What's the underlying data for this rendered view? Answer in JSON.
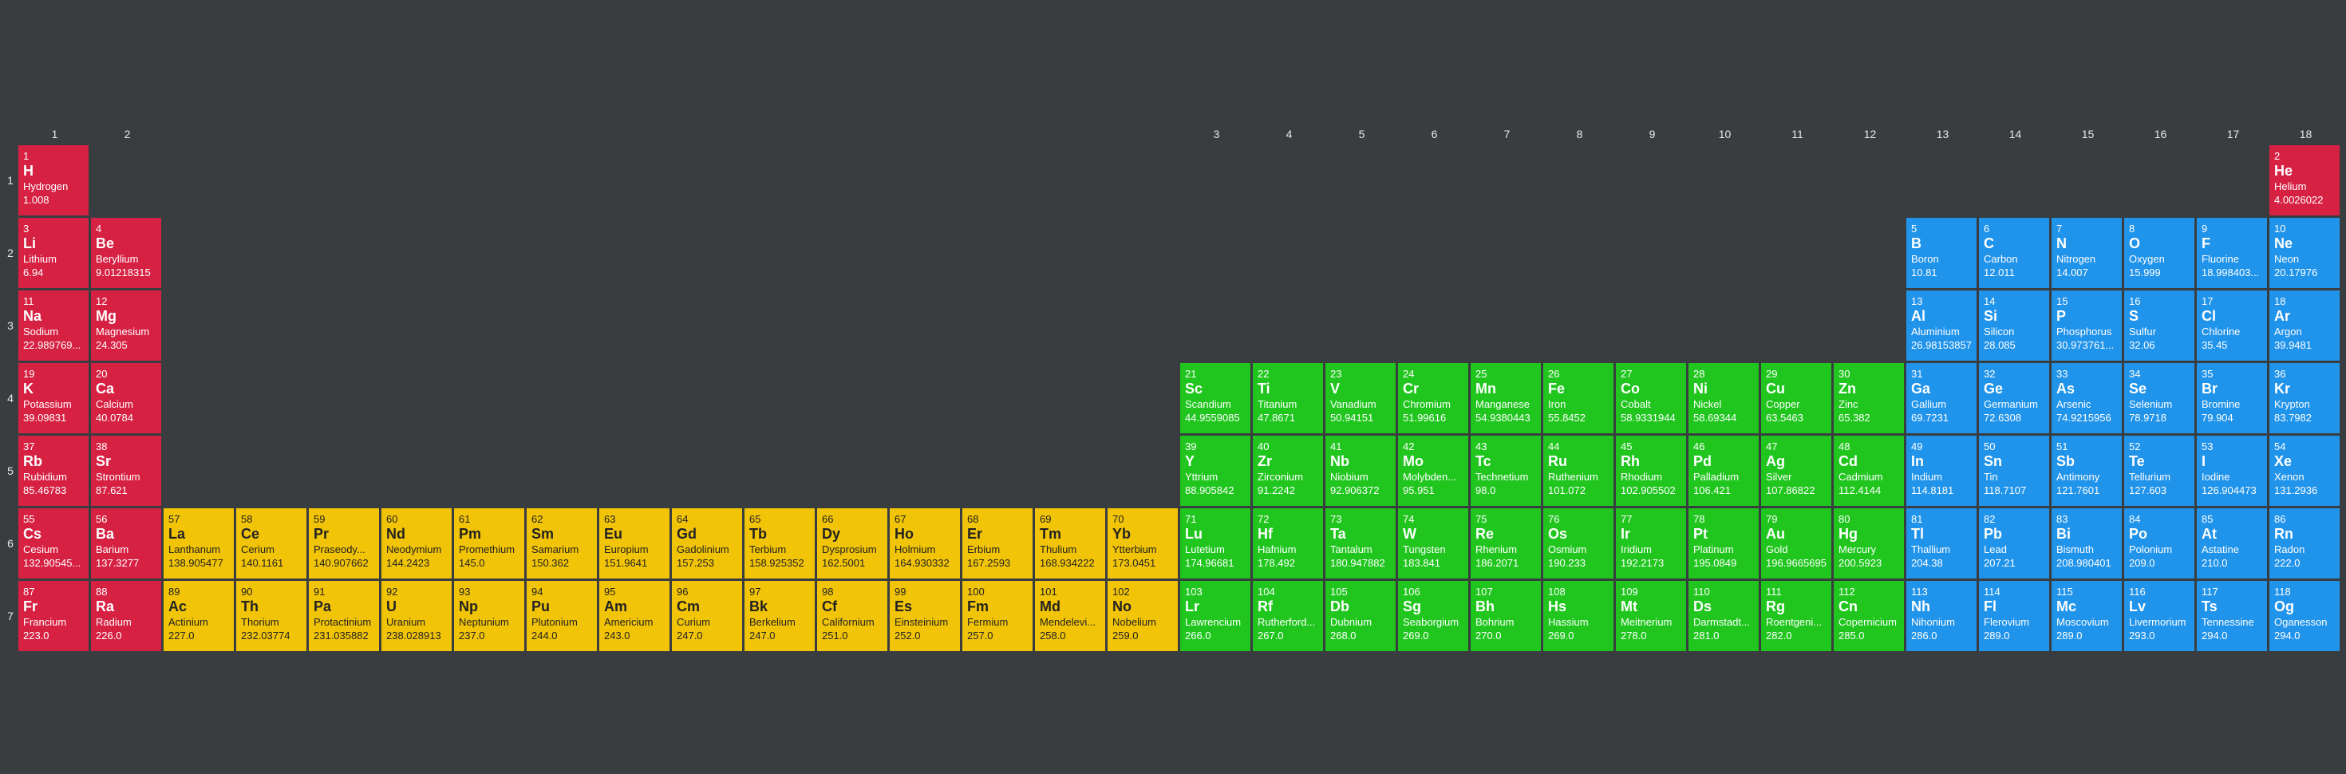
{
  "colors": {
    "red": "#d62143",
    "blue": "#2093ea",
    "green": "#20c61e",
    "yellow": "#f2c407",
    "background": "#3a3d40"
  },
  "col_labels": [
    "1",
    "2",
    "3",
    "4",
    "5",
    "6",
    "7",
    "8",
    "9",
    "10",
    "11",
    "12",
    "13",
    "14",
    "15",
    "16",
    "17",
    "18"
  ],
  "row_labels": [
    "1",
    "2",
    "3",
    "4",
    "5",
    "6",
    "7"
  ],
  "elements": [
    {
      "num": "1",
      "sym": "H",
      "name": "Hydrogen",
      "mass": "1.008",
      "row": 1,
      "col": 1,
      "cat": "red"
    },
    {
      "num": "2",
      "sym": "He",
      "name": "Helium",
      "mass": "4.0026022",
      "row": 1,
      "col": 32,
      "cat": "red"
    },
    {
      "num": "3",
      "sym": "Li",
      "name": "Lithium",
      "mass": "6.94",
      "row": 2,
      "col": 1,
      "cat": "red"
    },
    {
      "num": "4",
      "sym": "Be",
      "name": "Beryllium",
      "mass": "9.01218315",
      "row": 2,
      "col": 2,
      "cat": "red"
    },
    {
      "num": "5",
      "sym": "B",
      "name": "Boron",
      "mass": "10.81",
      "row": 2,
      "col": 27,
      "cat": "blue"
    },
    {
      "num": "6",
      "sym": "C",
      "name": "Carbon",
      "mass": "12.011",
      "row": 2,
      "col": 28,
      "cat": "blue"
    },
    {
      "num": "7",
      "sym": "N",
      "name": "Nitrogen",
      "mass": "14.007",
      "row": 2,
      "col": 29,
      "cat": "blue"
    },
    {
      "num": "8",
      "sym": "O",
      "name": "Oxygen",
      "mass": "15.999",
      "row": 2,
      "col": 30,
      "cat": "blue"
    },
    {
      "num": "9",
      "sym": "F",
      "name": "Fluorine",
      "mass": "18.998403...",
      "row": 2,
      "col": 31,
      "cat": "blue"
    },
    {
      "num": "10",
      "sym": "Ne",
      "name": "Neon",
      "mass": "20.17976",
      "row": 2,
      "col": 32,
      "cat": "blue"
    },
    {
      "num": "11",
      "sym": "Na",
      "name": "Sodium",
      "mass": "22.989769...",
      "row": 3,
      "col": 1,
      "cat": "red"
    },
    {
      "num": "12",
      "sym": "Mg",
      "name": "Magnesium",
      "mass": "24.305",
      "row": 3,
      "col": 2,
      "cat": "red"
    },
    {
      "num": "13",
      "sym": "Al",
      "name": "Aluminium",
      "mass": "26.98153857",
      "row": 3,
      "col": 27,
      "cat": "blue"
    },
    {
      "num": "14",
      "sym": "Si",
      "name": "Silicon",
      "mass": "28.085",
      "row": 3,
      "col": 28,
      "cat": "blue"
    },
    {
      "num": "15",
      "sym": "P",
      "name": "Phosphorus",
      "mass": "30.973761...",
      "row": 3,
      "col": 29,
      "cat": "blue"
    },
    {
      "num": "16",
      "sym": "S",
      "name": "Sulfur",
      "mass": "32.06",
      "row": 3,
      "col": 30,
      "cat": "blue"
    },
    {
      "num": "17",
      "sym": "Cl",
      "name": "Chlorine",
      "mass": "35.45",
      "row": 3,
      "col": 31,
      "cat": "blue"
    },
    {
      "num": "18",
      "sym": "Ar",
      "name": "Argon",
      "mass": "39.9481",
      "row": 3,
      "col": 32,
      "cat": "blue"
    },
    {
      "num": "19",
      "sym": "K",
      "name": "Potassium",
      "mass": "39.09831",
      "row": 4,
      "col": 1,
      "cat": "red"
    },
    {
      "num": "20",
      "sym": "Ca",
      "name": "Calcium",
      "mass": "40.0784",
      "row": 4,
      "col": 2,
      "cat": "red"
    },
    {
      "num": "21",
      "sym": "Sc",
      "name": "Scandium",
      "mass": "44.9559085",
      "row": 4,
      "col": 17,
      "cat": "green"
    },
    {
      "num": "22",
      "sym": "Ti",
      "name": "Titanium",
      "mass": "47.8671",
      "row": 4,
      "col": 18,
      "cat": "green"
    },
    {
      "num": "23",
      "sym": "V",
      "name": "Vanadium",
      "mass": "50.94151",
      "row": 4,
      "col": 19,
      "cat": "green"
    },
    {
      "num": "24",
      "sym": "Cr",
      "name": "Chromium",
      "mass": "51.99616",
      "row": 4,
      "col": 20,
      "cat": "green"
    },
    {
      "num": "25",
      "sym": "Mn",
      "name": "Manganese",
      "mass": "54.9380443",
      "row": 4,
      "col": 21,
      "cat": "green"
    },
    {
      "num": "26",
      "sym": "Fe",
      "name": "Iron",
      "mass": "55.8452",
      "row": 4,
      "col": 22,
      "cat": "green"
    },
    {
      "num": "27",
      "sym": "Co",
      "name": "Cobalt",
      "mass": "58.9331944",
      "row": 4,
      "col": 23,
      "cat": "green"
    },
    {
      "num": "28",
      "sym": "Ni",
      "name": "Nickel",
      "mass": "58.69344",
      "row": 4,
      "col": 24,
      "cat": "green"
    },
    {
      "num": "29",
      "sym": "Cu",
      "name": "Copper",
      "mass": "63.5463",
      "row": 4,
      "col": 25,
      "cat": "green"
    },
    {
      "num": "30",
      "sym": "Zn",
      "name": "Zinc",
      "mass": "65.382",
      "row": 4,
      "col": 26,
      "cat": "green"
    },
    {
      "num": "31",
      "sym": "Ga",
      "name": "Gallium",
      "mass": "69.7231",
      "row": 4,
      "col": 27,
      "cat": "blue"
    },
    {
      "num": "32",
      "sym": "Ge",
      "name": "Germanium",
      "mass": "72.6308",
      "row": 4,
      "col": 28,
      "cat": "blue"
    },
    {
      "num": "33",
      "sym": "As",
      "name": "Arsenic",
      "mass": "74.9215956",
      "row": 4,
      "col": 29,
      "cat": "blue"
    },
    {
      "num": "34",
      "sym": "Se",
      "name": "Selenium",
      "mass": "78.9718",
      "row": 4,
      "col": 30,
      "cat": "blue"
    },
    {
      "num": "35",
      "sym": "Br",
      "name": "Bromine",
      "mass": "79.904",
      "row": 4,
      "col": 31,
      "cat": "blue"
    },
    {
      "num": "36",
      "sym": "Kr",
      "name": "Krypton",
      "mass": "83.7982",
      "row": 4,
      "col": 32,
      "cat": "blue"
    },
    {
      "num": "37",
      "sym": "Rb",
      "name": "Rubidium",
      "mass": "85.46783",
      "row": 5,
      "col": 1,
      "cat": "red"
    },
    {
      "num": "38",
      "sym": "Sr",
      "name": "Strontium",
      "mass": "87.621",
      "row": 5,
      "col": 2,
      "cat": "red"
    },
    {
      "num": "39",
      "sym": "Y",
      "name": "Yttrium",
      "mass": "88.905842",
      "row": 5,
      "col": 17,
      "cat": "green"
    },
    {
      "num": "40",
      "sym": "Zr",
      "name": "Zirconium",
      "mass": "91.2242",
      "row": 5,
      "col": 18,
      "cat": "green"
    },
    {
      "num": "41",
      "sym": "Nb",
      "name": "Niobium",
      "mass": "92.906372",
      "row": 5,
      "col": 19,
      "cat": "green"
    },
    {
      "num": "42",
      "sym": "Mo",
      "name": "Molybden...",
      "mass": "95.951",
      "row": 5,
      "col": 20,
      "cat": "green"
    },
    {
      "num": "43",
      "sym": "Tc",
      "name": "Technetium",
      "mass": "98.0",
      "row": 5,
      "col": 21,
      "cat": "green"
    },
    {
      "num": "44",
      "sym": "Ru",
      "name": "Ruthenium",
      "mass": "101.072",
      "row": 5,
      "col": 22,
      "cat": "green"
    },
    {
      "num": "45",
      "sym": "Rh",
      "name": "Rhodium",
      "mass": "102.905502",
      "row": 5,
      "col": 23,
      "cat": "green"
    },
    {
      "num": "46",
      "sym": "Pd",
      "name": "Palladium",
      "mass": "106.421",
      "row": 5,
      "col": 24,
      "cat": "green"
    },
    {
      "num": "47",
      "sym": "Ag",
      "name": "Silver",
      "mass": "107.86822",
      "row": 5,
      "col": 25,
      "cat": "green"
    },
    {
      "num": "48",
      "sym": "Cd",
      "name": "Cadmium",
      "mass": "112.4144",
      "row": 5,
      "col": 26,
      "cat": "green"
    },
    {
      "num": "49",
      "sym": "In",
      "name": "Indium",
      "mass": "114.8181",
      "row": 5,
      "col": 27,
      "cat": "blue"
    },
    {
      "num": "50",
      "sym": "Sn",
      "name": "Tin",
      "mass": "118.7107",
      "row": 5,
      "col": 28,
      "cat": "blue"
    },
    {
      "num": "51",
      "sym": "Sb",
      "name": "Antimony",
      "mass": "121.7601",
      "row": 5,
      "col": 29,
      "cat": "blue"
    },
    {
      "num": "52",
      "sym": "Te",
      "name": "Tellurium",
      "mass": "127.603",
      "row": 5,
      "col": 30,
      "cat": "blue"
    },
    {
      "num": "53",
      "sym": "I",
      "name": "Iodine",
      "mass": "126.904473",
      "row": 5,
      "col": 31,
      "cat": "blue"
    },
    {
      "num": "54",
      "sym": "Xe",
      "name": "Xenon",
      "mass": "131.2936",
      "row": 5,
      "col": 32,
      "cat": "blue"
    },
    {
      "num": "55",
      "sym": "Cs",
      "name": "Cesium",
      "mass": "132.90545...",
      "row": 6,
      "col": 1,
      "cat": "red"
    },
    {
      "num": "56",
      "sym": "Ba",
      "name": "Barium",
      "mass": "137.3277",
      "row": 6,
      "col": 2,
      "cat": "red"
    },
    {
      "num": "57",
      "sym": "La",
      "name": "Lanthanum",
      "mass": "138.905477",
      "row": 6,
      "col": 3,
      "cat": "yellow"
    },
    {
      "num": "58",
      "sym": "Ce",
      "name": "Cerium",
      "mass": "140.1161",
      "row": 6,
      "col": 4,
      "cat": "yellow"
    },
    {
      "num": "59",
      "sym": "Pr",
      "name": "Praseody...",
      "mass": "140.907662",
      "row": 6,
      "col": 5,
      "cat": "yellow"
    },
    {
      "num": "60",
      "sym": "Nd",
      "name": "Neodymium",
      "mass": "144.2423",
      "row": 6,
      "col": 6,
      "cat": "yellow"
    },
    {
      "num": "61",
      "sym": "Pm",
      "name": "Promethium",
      "mass": "145.0",
      "row": 6,
      "col": 7,
      "cat": "yellow"
    },
    {
      "num": "62",
      "sym": "Sm",
      "name": "Samarium",
      "mass": "150.362",
      "row": 6,
      "col": 8,
      "cat": "yellow"
    },
    {
      "num": "63",
      "sym": "Eu",
      "name": "Europium",
      "mass": "151.9641",
      "row": 6,
      "col": 9,
      "cat": "yellow"
    },
    {
      "num": "64",
      "sym": "Gd",
      "name": "Gadolinium",
      "mass": "157.253",
      "row": 6,
      "col": 10,
      "cat": "yellow"
    },
    {
      "num": "65",
      "sym": "Tb",
      "name": "Terbium",
      "mass": "158.925352",
      "row": 6,
      "col": 11,
      "cat": "yellow"
    },
    {
      "num": "66",
      "sym": "Dy",
      "name": "Dysprosium",
      "mass": "162.5001",
      "row": 6,
      "col": 12,
      "cat": "yellow"
    },
    {
      "num": "67",
      "sym": "Ho",
      "name": "Holmium",
      "mass": "164.930332",
      "row": 6,
      "col": 13,
      "cat": "yellow"
    },
    {
      "num": "68",
      "sym": "Er",
      "name": "Erbium",
      "mass": "167.2593",
      "row": 6,
      "col": 14,
      "cat": "yellow"
    },
    {
      "num": "69",
      "sym": "Tm",
      "name": "Thulium",
      "mass": "168.934222",
      "row": 6,
      "col": 15,
      "cat": "yellow"
    },
    {
      "num": "70",
      "sym": "Yb",
      "name": "Ytterbium",
      "mass": "173.0451",
      "row": 6,
      "col": 16,
      "cat": "yellow"
    },
    {
      "num": "71",
      "sym": "Lu",
      "name": "Lutetium",
      "mass": "174.96681",
      "row": 6,
      "col": 17,
      "cat": "green"
    },
    {
      "num": "72",
      "sym": "Hf",
      "name": "Hafnium",
      "mass": "178.492",
      "row": 6,
      "col": 18,
      "cat": "green"
    },
    {
      "num": "73",
      "sym": "Ta",
      "name": "Tantalum",
      "mass": "180.947882",
      "row": 6,
      "col": 19,
      "cat": "green"
    },
    {
      "num": "74",
      "sym": "W",
      "name": "Tungsten",
      "mass": "183.841",
      "row": 6,
      "col": 20,
      "cat": "green"
    },
    {
      "num": "75",
      "sym": "Re",
      "name": "Rhenium",
      "mass": "186.2071",
      "row": 6,
      "col": 21,
      "cat": "green"
    },
    {
      "num": "76",
      "sym": "Os",
      "name": "Osmium",
      "mass": "190.233",
      "row": 6,
      "col": 22,
      "cat": "green"
    },
    {
      "num": "77",
      "sym": "Ir",
      "name": "Iridium",
      "mass": "192.2173",
      "row": 6,
      "col": 23,
      "cat": "green"
    },
    {
      "num": "78",
      "sym": "Pt",
      "name": "Platinum",
      "mass": "195.0849",
      "row": 6,
      "col": 24,
      "cat": "green"
    },
    {
      "num": "79",
      "sym": "Au",
      "name": "Gold",
      "mass": "196.9665695",
      "row": 6,
      "col": 25,
      "cat": "green"
    },
    {
      "num": "80",
      "sym": "Hg",
      "name": "Mercury",
      "mass": "200.5923",
      "row": 6,
      "col": 26,
      "cat": "green"
    },
    {
      "num": "81",
      "sym": "Tl",
      "name": "Thallium",
      "mass": "204.38",
      "row": 6,
      "col": 27,
      "cat": "blue"
    },
    {
      "num": "82",
      "sym": "Pb",
      "name": "Lead",
      "mass": "207.21",
      "row": 6,
      "col": 28,
      "cat": "blue"
    },
    {
      "num": "83",
      "sym": "Bi",
      "name": "Bismuth",
      "mass": "208.980401",
      "row": 6,
      "col": 29,
      "cat": "blue"
    },
    {
      "num": "84",
      "sym": "Po",
      "name": "Polonium",
      "mass": "209.0",
      "row": 6,
      "col": 30,
      "cat": "blue"
    },
    {
      "num": "85",
      "sym": "At",
      "name": "Astatine",
      "mass": "210.0",
      "row": 6,
      "col": 31,
      "cat": "blue"
    },
    {
      "num": "86",
      "sym": "Rn",
      "name": "Radon",
      "mass": "222.0",
      "row": 6,
      "col": 32,
      "cat": "blue"
    },
    {
      "num": "87",
      "sym": "Fr",
      "name": "Francium",
      "mass": "223.0",
      "row": 7,
      "col": 1,
      "cat": "red"
    },
    {
      "num": "88",
      "sym": "Ra",
      "name": "Radium",
      "mass": "226.0",
      "row": 7,
      "col": 2,
      "cat": "red"
    },
    {
      "num": "89",
      "sym": "Ac",
      "name": "Actinium",
      "mass": "227.0",
      "row": 7,
      "col": 3,
      "cat": "yellow"
    },
    {
      "num": "90",
      "sym": "Th",
      "name": "Thorium",
      "mass": "232.03774",
      "row": 7,
      "col": 4,
      "cat": "yellow"
    },
    {
      "num": "91",
      "sym": "Pa",
      "name": "Protactinium",
      "mass": "231.035882",
      "row": 7,
      "col": 5,
      "cat": "yellow"
    },
    {
      "num": "92",
      "sym": "U",
      "name": "Uranium",
      "mass": "238.028913",
      "row": 7,
      "col": 6,
      "cat": "yellow"
    },
    {
      "num": "93",
      "sym": "Np",
      "name": "Neptunium",
      "mass": "237.0",
      "row": 7,
      "col": 7,
      "cat": "yellow"
    },
    {
      "num": "94",
      "sym": "Pu",
      "name": "Plutonium",
      "mass": "244.0",
      "row": 7,
      "col": 8,
      "cat": "yellow"
    },
    {
      "num": "95",
      "sym": "Am",
      "name": "Americium",
      "mass": "243.0",
      "row": 7,
      "col": 9,
      "cat": "yellow"
    },
    {
      "num": "96",
      "sym": "Cm",
      "name": "Curium",
      "mass": "247.0",
      "row": 7,
      "col": 10,
      "cat": "yellow"
    },
    {
      "num": "97",
      "sym": "Bk",
      "name": "Berkelium",
      "mass": "247.0",
      "row": 7,
      "col": 11,
      "cat": "yellow"
    },
    {
      "num": "98",
      "sym": "Cf",
      "name": "Californium",
      "mass": "251.0",
      "row": 7,
      "col": 12,
      "cat": "yellow"
    },
    {
      "num": "99",
      "sym": "Es",
      "name": "Einsteinium",
      "mass": "252.0",
      "row": 7,
      "col": 13,
      "cat": "yellow"
    },
    {
      "num": "100",
      "sym": "Fm",
      "name": "Fermium",
      "mass": "257.0",
      "row": 7,
      "col": 14,
      "cat": "yellow"
    },
    {
      "num": "101",
      "sym": "Md",
      "name": "Mendelevi...",
      "mass": "258.0",
      "row": 7,
      "col": 15,
      "cat": "yellow"
    },
    {
      "num": "102",
      "sym": "No",
      "name": "Nobelium",
      "mass": "259.0",
      "row": 7,
      "col": 16,
      "cat": "yellow"
    },
    {
      "num": "103",
      "sym": "Lr",
      "name": "Lawrencium",
      "mass": "266.0",
      "row": 7,
      "col": 17,
      "cat": "green"
    },
    {
      "num": "104",
      "sym": "Rf",
      "name": "Rutherford...",
      "mass": "267.0",
      "row": 7,
      "col": 18,
      "cat": "green"
    },
    {
      "num": "105",
      "sym": "Db",
      "name": "Dubnium",
      "mass": "268.0",
      "row": 7,
      "col": 19,
      "cat": "green"
    },
    {
      "num": "106",
      "sym": "Sg",
      "name": "Seaborgium",
      "mass": "269.0",
      "row": 7,
      "col": 20,
      "cat": "green"
    },
    {
      "num": "107",
      "sym": "Bh",
      "name": "Bohrium",
      "mass": "270.0",
      "row": 7,
      "col": 21,
      "cat": "green"
    },
    {
      "num": "108",
      "sym": "Hs",
      "name": "Hassium",
      "mass": "269.0",
      "row": 7,
      "col": 22,
      "cat": "green"
    },
    {
      "num": "109",
      "sym": "Mt",
      "name": "Meitnerium",
      "mass": "278.0",
      "row": 7,
      "col": 23,
      "cat": "green"
    },
    {
      "num": "110",
      "sym": "Ds",
      "name": "Darmstadt...",
      "mass": "281.0",
      "row": 7,
      "col": 24,
      "cat": "green"
    },
    {
      "num": "111",
      "sym": "Rg",
      "name": "Roentgeni...",
      "mass": "282.0",
      "row": 7,
      "col": 25,
      "cat": "green"
    },
    {
      "num": "112",
      "sym": "Cn",
      "name": "Copernicium",
      "mass": "285.0",
      "row": 7,
      "col": 26,
      "cat": "green"
    },
    {
      "num": "113",
      "sym": "Nh",
      "name": "Nihonium",
      "mass": "286.0",
      "row": 7,
      "col": 27,
      "cat": "blue"
    },
    {
      "num": "114",
      "sym": "Fl",
      "name": "Flerovium",
      "mass": "289.0",
      "row": 7,
      "col": 28,
      "cat": "blue"
    },
    {
      "num": "115",
      "sym": "Mc",
      "name": "Moscovium",
      "mass": "289.0",
      "row": 7,
      "col": 29,
      "cat": "blue"
    },
    {
      "num": "116",
      "sym": "Lv",
      "name": "Livermorium",
      "mass": "293.0",
      "row": 7,
      "col": 30,
      "cat": "blue"
    },
    {
      "num": "117",
      "sym": "Ts",
      "name": "Tennessine",
      "mass": "294.0",
      "row": 7,
      "col": 31,
      "cat": "blue"
    },
    {
      "num": "118",
      "sym": "Og",
      "name": "Oganesson",
      "mass": "294.0",
      "row": 7,
      "col": 32,
      "cat": "blue"
    }
  ]
}
